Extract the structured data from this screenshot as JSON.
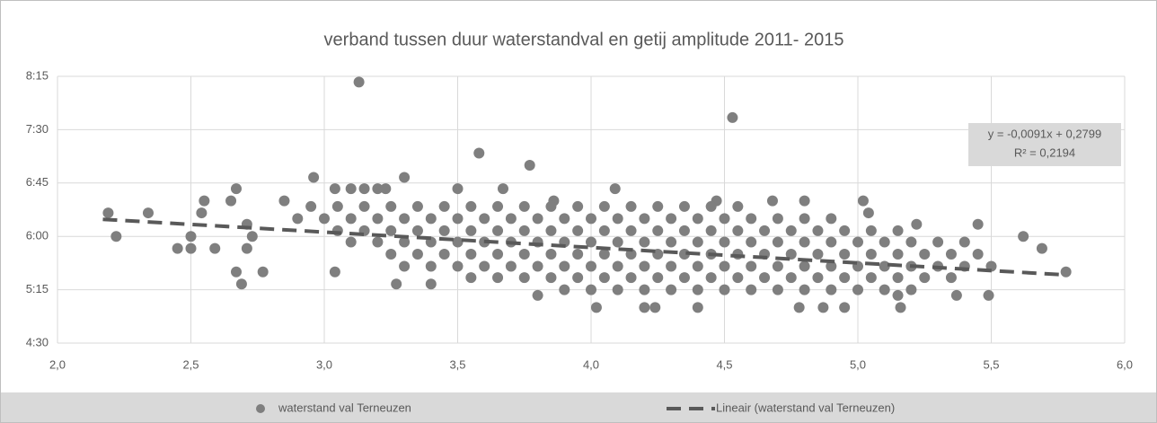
{
  "chart_data": {
    "type": "scatter",
    "title": "verband tussen duur waterstandval en getij amplitude 2011- 2015",
    "xlim": [
      2,
      6
    ],
    "xticks": [
      {
        "value": 2,
        "label": "2,0"
      },
      {
        "value": 2.5,
        "label": "2,5"
      },
      {
        "value": 3,
        "label": "3,0"
      },
      {
        "value": 3.5,
        "label": "3,5"
      },
      {
        "value": 4,
        "label": "4,0"
      },
      {
        "value": 4.5,
        "label": "4,5"
      },
      {
        "value": 5,
        "label": "5,0"
      },
      {
        "value": 5.5,
        "label": "5,5"
      },
      {
        "value": 6,
        "label": "6,0"
      }
    ],
    "ylim": [
      4.5,
      8.25
    ],
    "yticks": [
      {
        "value": 4.5,
        "label": "4:30"
      },
      {
        "value": 5.25,
        "label": "5:15"
      },
      {
        "value": 6,
        "label": "6:00"
      },
      {
        "value": 6.75,
        "label": "6:45"
      },
      {
        "value": 7.5,
        "label": "7:30"
      },
      {
        "value": 8.25,
        "label": "8:15"
      }
    ],
    "grid": true,
    "legend": "bottom",
    "x": [
      2.19,
      2.22,
      2.34,
      2.45,
      2.5,
      2.5,
      2.55,
      2.54,
      2.59,
      2.65,
      2.67,
      2.67,
      2.69,
      2.71,
      2.71,
      2.73,
      2.77,
      2.85,
      2.96,
      3.04,
      3.04,
      3.1,
      3.13,
      3.15,
      3.2,
      3.23,
      3.3,
      3.27,
      3.4,
      3.5,
      3.58,
      3.67,
      3.77,
      3.8,
      3.86,
      4.02,
      4.09,
      4.2,
      4.24,
      4.4,
      4.47,
      4.53,
      4.78,
      4.87,
      4.95,
      4.68,
      4.8,
      5.02,
      5.04,
      5.15,
      5.16,
      5.22,
      5.37,
      5.45,
      5.49,
      5.62,
      5.78,
      5.69,
      2.95,
      3.05,
      3.15,
      3.25,
      3.35,
      3.45,
      3.55,
      3.65,
      3.75,
      3.85,
      3.95,
      4.05,
      4.15,
      4.25,
      4.35,
      4.45,
      4.55,
      2.9,
      3.0,
      3.1,
      3.2,
      3.3,
      3.4,
      3.5,
      3.6,
      3.7,
      3.8,
      3.9,
      4.0,
      4.1,
      4.2,
      4.3,
      4.4,
      4.5,
      4.6,
      4.7,
      4.8,
      4.9,
      3.05,
      3.15,
      3.25,
      3.35,
      3.45,
      3.55,
      3.65,
      3.75,
      3.85,
      3.95,
      4.05,
      4.15,
      4.25,
      4.35,
      4.45,
      4.55,
      4.65,
      4.75,
      4.85,
      4.95,
      5.05,
      5.15,
      3.1,
      3.2,
      3.3,
      3.4,
      3.5,
      3.6,
      3.7,
      3.8,
      3.9,
      4.0,
      4.1,
      4.2,
      4.3,
      4.4,
      4.5,
      4.6,
      4.7,
      4.8,
      4.9,
      5.0,
      5.1,
      5.2,
      5.3,
      5.4,
      3.25,
      3.35,
      3.45,
      3.55,
      3.65,
      3.75,
      3.85,
      3.95,
      4.05,
      4.15,
      4.25,
      4.35,
      4.45,
      4.55,
      4.65,
      4.75,
      4.85,
      4.95,
      5.05,
      5.15,
      5.25,
      5.35,
      5.45,
      3.3,
      3.4,
      3.5,
      3.6,
      3.7,
      3.8,
      3.9,
      4.0,
      4.1,
      4.2,
      4.3,
      4.4,
      4.5,
      4.6,
      4.7,
      4.8,
      4.9,
      5.0,
      5.1,
      5.2,
      5.3,
      5.4,
      5.5,
      3.55,
      3.65,
      3.75,
      3.85,
      3.95,
      4.05,
      4.15,
      4.25,
      4.35,
      4.45,
      4.55,
      4.65,
      4.75,
      4.85,
      4.95,
      5.05,
      5.15,
      5.25,
      5.35,
      3.9,
      4.0,
      4.1,
      4.2,
      4.3,
      4.4,
      4.5,
      4.6,
      4.7,
      4.8,
      4.9,
      5.0,
      5.1,
      5.2
    ],
    "series": [
      {
        "name": "waterstand val Terneuzen",
        "color": "#7f7f7f",
        "values": [
          6.33,
          6.0,
          6.33,
          5.83,
          6.0,
          5.83,
          6.5,
          6.33,
          5.83,
          6.5,
          6.67,
          5.5,
          5.33,
          6.17,
          5.83,
          6.0,
          5.5,
          6.5,
          6.83,
          6.67,
          5.5,
          6.67,
          8.17,
          6.67,
          6.67,
          6.67,
          6.83,
          5.33,
          5.33,
          6.67,
          7.17,
          6.67,
          7.0,
          5.17,
          6.5,
          5.0,
          6.67,
          5.0,
          5.0,
          5.0,
          6.5,
          7.67,
          5.0,
          5.0,
          5.0,
          6.5,
          6.5,
          6.5,
          6.33,
          5.17,
          5.0,
          6.17,
          5.17,
          6.17,
          5.17,
          6.0,
          5.5,
          5.83,
          6.42,
          6.42,
          6.42,
          6.42,
          6.42,
          6.42,
          6.42,
          6.42,
          6.42,
          6.42,
          6.42,
          6.42,
          6.42,
          6.42,
          6.42,
          6.42,
          6.42,
          6.25,
          6.25,
          6.25,
          6.25,
          6.25,
          6.25,
          6.25,
          6.25,
          6.25,
          6.25,
          6.25,
          6.25,
          6.25,
          6.25,
          6.25,
          6.25,
          6.25,
          6.25,
          6.25,
          6.25,
          6.25,
          6.08,
          6.08,
          6.08,
          6.08,
          6.08,
          6.08,
          6.08,
          6.08,
          6.08,
          6.08,
          6.08,
          6.08,
          6.08,
          6.08,
          6.08,
          6.08,
          6.08,
          6.08,
          6.08,
          6.08,
          6.08,
          6.08,
          5.92,
          5.92,
          5.92,
          5.92,
          5.92,
          5.92,
          5.92,
          5.92,
          5.92,
          5.92,
          5.92,
          5.92,
          5.92,
          5.92,
          5.92,
          5.92,
          5.92,
          5.92,
          5.92,
          5.92,
          5.92,
          5.92,
          5.92,
          5.92,
          5.75,
          5.75,
          5.75,
          5.75,
          5.75,
          5.75,
          5.75,
          5.75,
          5.75,
          5.75,
          5.75,
          5.75,
          5.75,
          5.75,
          5.75,
          5.75,
          5.75,
          5.75,
          5.75,
          5.75,
          5.75,
          5.75,
          5.75,
          5.58,
          5.58,
          5.58,
          5.58,
          5.58,
          5.58,
          5.58,
          5.58,
          5.58,
          5.58,
          5.58,
          5.58,
          5.58,
          5.58,
          5.58,
          5.58,
          5.58,
          5.58,
          5.58,
          5.58,
          5.58,
          5.58,
          5.58,
          5.42,
          5.42,
          5.42,
          5.42,
          5.42,
          5.42,
          5.42,
          5.42,
          5.42,
          5.42,
          5.42,
          5.42,
          5.42,
          5.42,
          5.42,
          5.42,
          5.42,
          5.42,
          5.42,
          5.25,
          5.25,
          5.25,
          5.25,
          5.25,
          5.25,
          5.25,
          5.25,
          5.25,
          5.25,
          5.25,
          5.25,
          5.25,
          5.25
        ]
      }
    ],
    "trendline": {
      "name": "Lineair (waterstand val Terneuzen)",
      "color": "#595959",
      "x": [
        2.17,
        5.77
      ],
      "values": [
        6.24,
        5.46
      ]
    },
    "annotation": [
      "y = -0,0091x + 0,2799",
      "R² = 0,2194"
    ]
  }
}
